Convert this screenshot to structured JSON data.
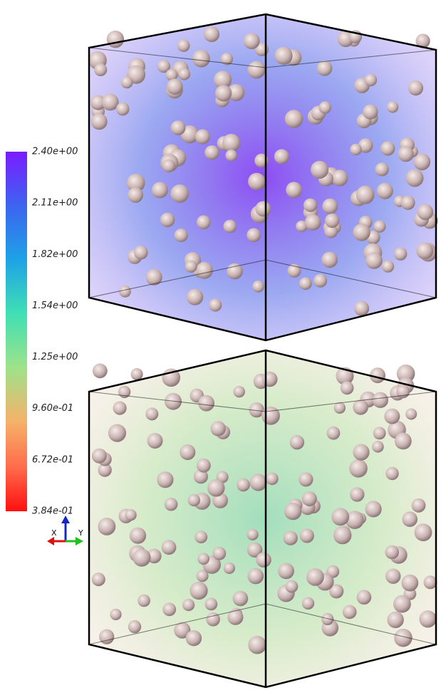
{
  "colorbar": {
    "ticks": [
      "2.40e+00",
      "2.11e+00",
      "1.82e+00",
      "1.54e+00",
      "1.25e+00",
      "9.60e-01",
      "6.72e-01",
      "3.84e-01"
    ]
  },
  "axes": {
    "x": "X",
    "y": "Y"
  }
}
